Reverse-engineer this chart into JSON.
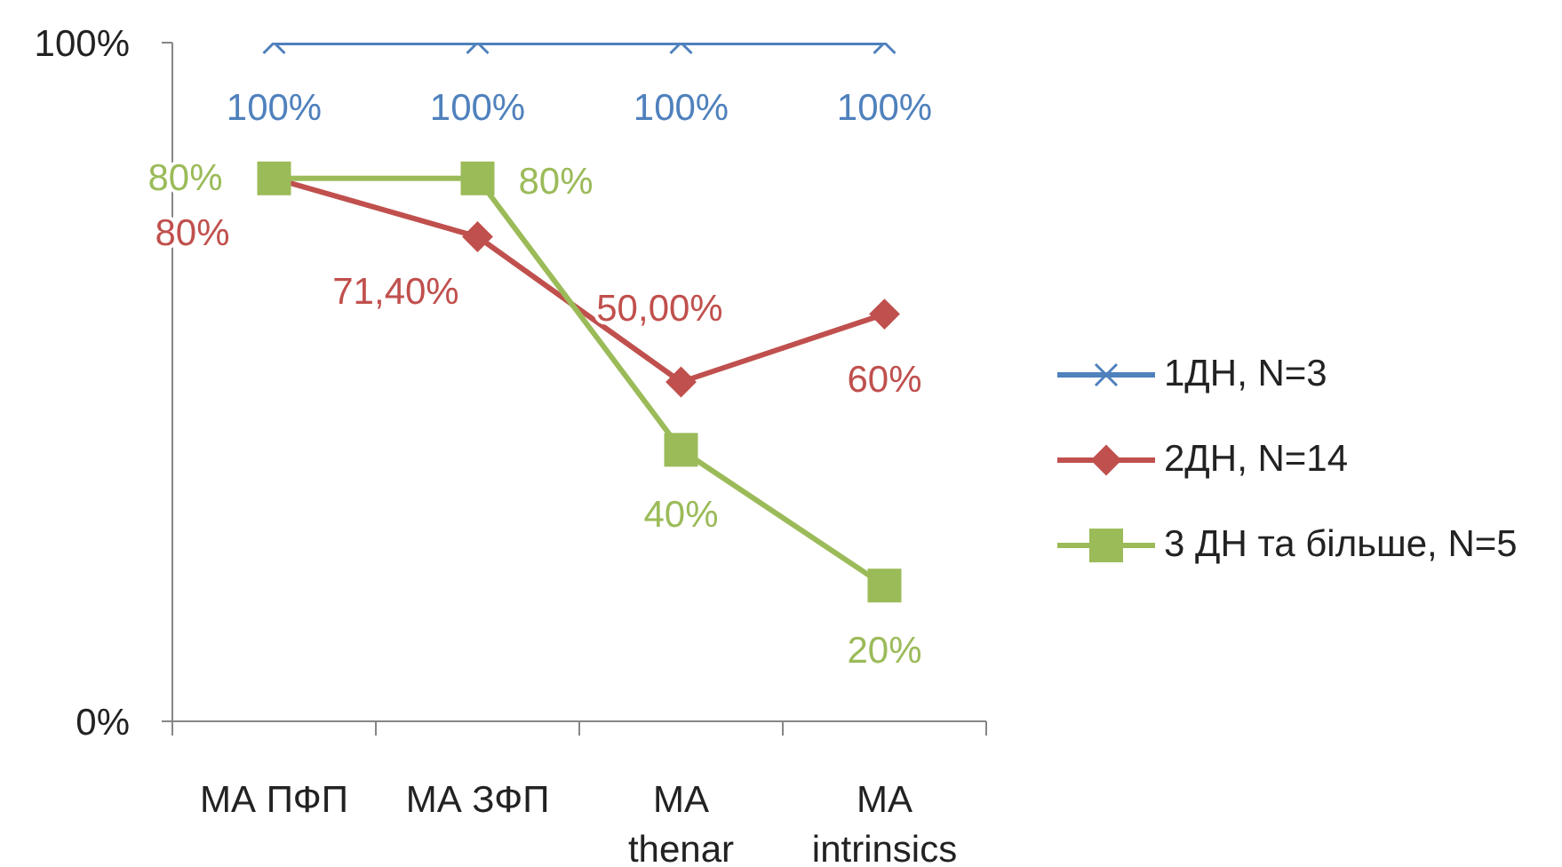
{
  "chart_data": {
    "type": "line",
    "categories": [
      "МА ПФП",
      "МА ЗФП",
      "МА thenar",
      "МА intrinsics"
    ],
    "series": [
      {
        "name": "1ДН, N=3",
        "color": "#4f81bd",
        "marker": "cross",
        "values": [
          100,
          100,
          100,
          100
        ],
        "value_labels": [
          "100%",
          "100%",
          "100%",
          "100%"
        ]
      },
      {
        "name": "2ДН, N=14",
        "color": "#c0504d",
        "marker": "diamond",
        "values": [
          80,
          71.4,
          50,
          60
        ],
        "value_labels": [
          "80%",
          "71,40%",
          "50,00%",
          "60%"
        ]
      },
      {
        "name": "3 ДН та більше, N=5",
        "color": "#9bbb59",
        "marker": "square",
        "values": [
          80,
          80,
          40,
          20
        ],
        "value_labels": [
          "80%",
          "80%",
          "40%",
          "20%"
        ]
      }
    ],
    "ylim": [
      0,
      100
    ],
    "yticks": [
      {
        "value": 0,
        "label": "0%"
      },
      {
        "value": 100,
        "label": "100%"
      }
    ],
    "legend": "right"
  }
}
